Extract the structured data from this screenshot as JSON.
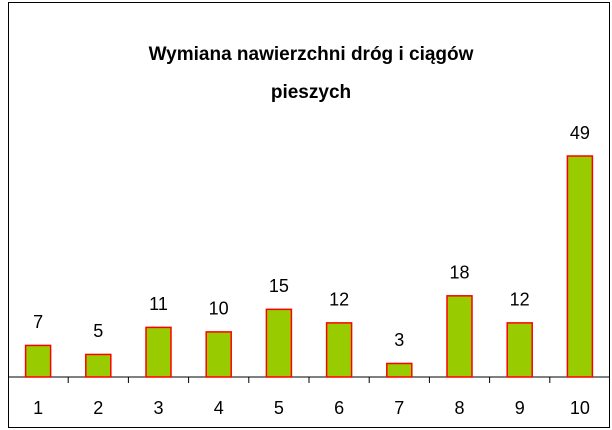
{
  "chart_data": {
    "type": "bar",
    "title": "Wymiana nawierzchni dróg i ciągów pieszych",
    "categories": [
      "1",
      "2",
      "3",
      "4",
      "5",
      "6",
      "7",
      "8",
      "9",
      "10"
    ],
    "values": [
      7,
      5,
      11,
      10,
      15,
      12,
      3,
      18,
      12,
      49
    ],
    "color": "#99cc00",
    "edge_color": "#ff0000"
  }
}
